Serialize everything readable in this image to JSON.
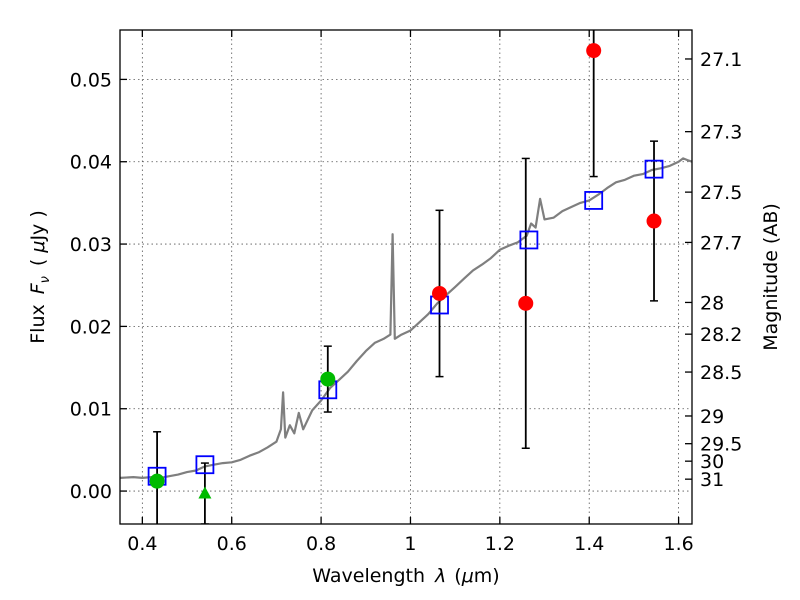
{
  "chart_data": {
    "type": "scatter",
    "xlabel_prefix": "Wavelength",
    "xlabel_symbol": "λ",
    "xlabel_unit_open": "(",
    "xlabel_unit_mu": "μ",
    "xlabel_unit_rest": "m)",
    "ylabel_prefix": "Flux",
    "ylabel_symbol": "F",
    "ylabel_symbol_sub": "ν",
    "ylabel_unit_open": "(",
    "ylabel_unit_mu": "μ",
    "ylabel_unit_rest": "Jy )",
    "y2label": "Magnitude (AB)",
    "xlim": [
      0.35,
      1.63
    ],
    "ylim": [
      -0.004,
      0.056
    ],
    "grid": true,
    "x_ticks": [
      {
        "value": 0.4,
        "label": "0.4"
      },
      {
        "value": 0.6,
        "label": "0.6"
      },
      {
        "value": 0.8,
        "label": "0.8"
      },
      {
        "value": 1.0,
        "label": "1"
      },
      {
        "value": 1.2,
        "label": "1.2"
      },
      {
        "value": 1.4,
        "label": "1.4"
      },
      {
        "value": 1.6,
        "label": "1.6"
      }
    ],
    "y_ticks": [
      {
        "value": 0.0,
        "label": "0.00"
      },
      {
        "value": 0.01,
        "label": "0.01"
      },
      {
        "value": 0.02,
        "label": "0.02"
      },
      {
        "value": 0.03,
        "label": "0.03"
      },
      {
        "value": 0.04,
        "label": "0.04"
      },
      {
        "value": 0.05,
        "label": "0.05"
      }
    ],
    "mag_ticks": [
      {
        "mag": 27.1,
        "label": "27.1"
      },
      {
        "mag": 27.3,
        "label": "27.3"
      },
      {
        "mag": 27.5,
        "label": "27.5"
      },
      {
        "mag": 27.7,
        "label": "27.7"
      },
      {
        "mag": 28.0,
        "label": "28"
      },
      {
        "mag": 28.2,
        "label": "28.2"
      },
      {
        "mag": 28.5,
        "label": "28.5"
      },
      {
        "mag": 29.0,
        "label": "29"
      },
      {
        "mag": 29.5,
        "label": "29.5"
      },
      {
        "mag": 30.0,
        "label": "30"
      },
      {
        "mag": 31.0,
        "label": "31"
      }
    ],
    "sed_color": "#7f7f7f",
    "sed_model": [
      [
        0.35,
        0.0016
      ],
      [
        0.38,
        0.0017
      ],
      [
        0.4,
        0.0016
      ],
      [
        0.42,
        0.0017
      ],
      [
        0.44,
        0.0016
      ],
      [
        0.46,
        0.0018
      ],
      [
        0.48,
        0.002
      ],
      [
        0.5,
        0.0023
      ],
      [
        0.52,
        0.0025
      ],
      [
        0.54,
        0.003
      ],
      [
        0.56,
        0.0032
      ],
      [
        0.58,
        0.0034
      ],
      [
        0.6,
        0.0035
      ],
      [
        0.62,
        0.0038
      ],
      [
        0.64,
        0.0043
      ],
      [
        0.66,
        0.0047
      ],
      [
        0.68,
        0.0053
      ],
      [
        0.7,
        0.006
      ],
      [
        0.71,
        0.0075
      ],
      [
        0.715,
        0.012
      ],
      [
        0.72,
        0.0065
      ],
      [
        0.73,
        0.008
      ],
      [
        0.74,
        0.007
      ],
      [
        0.75,
        0.0095
      ],
      [
        0.76,
        0.0075
      ],
      [
        0.78,
        0.0098
      ],
      [
        0.8,
        0.011
      ],
      [
        0.82,
        0.0125
      ],
      [
        0.84,
        0.0135
      ],
      [
        0.86,
        0.0145
      ],
      [
        0.88,
        0.0158
      ],
      [
        0.9,
        0.017
      ],
      [
        0.92,
        0.018
      ],
      [
        0.94,
        0.0185
      ],
      [
        0.955,
        0.019
      ],
      [
        0.96,
        0.0312
      ],
      [
        0.965,
        0.0185
      ],
      [
        0.98,
        0.019
      ],
      [
        1.0,
        0.0195
      ],
      [
        1.02,
        0.0205
      ],
      [
        1.04,
        0.0215
      ],
      [
        1.06,
        0.0228
      ],
      [
        1.08,
        0.0238
      ],
      [
        1.1,
        0.0248
      ],
      [
        1.12,
        0.0258
      ],
      [
        1.14,
        0.0268
      ],
      [
        1.16,
        0.0275
      ],
      [
        1.18,
        0.0283
      ],
      [
        1.2,
        0.0293
      ],
      [
        1.22,
        0.0298
      ],
      [
        1.24,
        0.0302
      ],
      [
        1.26,
        0.031
      ],
      [
        1.27,
        0.0325
      ],
      [
        1.28,
        0.032
      ],
      [
        1.29,
        0.0355
      ],
      [
        1.3,
        0.033
      ],
      [
        1.32,
        0.0332
      ],
      [
        1.34,
        0.034
      ],
      [
        1.36,
        0.0345
      ],
      [
        1.38,
        0.035
      ],
      [
        1.4,
        0.0353
      ],
      [
        1.42,
        0.036
      ],
      [
        1.44,
        0.0368
      ],
      [
        1.46,
        0.0375
      ],
      [
        1.48,
        0.0378
      ],
      [
        1.5,
        0.0383
      ],
      [
        1.52,
        0.0385
      ],
      [
        1.54,
        0.039
      ],
      [
        1.56,
        0.0392
      ],
      [
        1.58,
        0.0395
      ],
      [
        1.6,
        0.04
      ],
      [
        1.61,
        0.0404
      ],
      [
        1.62,
        0.0402
      ],
      [
        1.63,
        0.04
      ]
    ],
    "model_points": {
      "marker": "open-square",
      "color": "#0000ff",
      "points": [
        [
          0.433,
          0.0018
        ],
        [
          0.54,
          0.0032
        ],
        [
          0.815,
          0.0123
        ],
        [
          1.065,
          0.0226
        ],
        [
          1.265,
          0.0305
        ],
        [
          1.41,
          0.0353
        ],
        [
          1.545,
          0.0391
        ]
      ]
    },
    "detections": {
      "marker": "circle",
      "color": "#00bb00",
      "points": [
        {
          "x": 0.433,
          "y": 0.0012,
          "err": 0.006
        },
        {
          "x": 0.815,
          "y": 0.0136,
          "err": 0.004
        }
      ]
    },
    "upper_limit": {
      "marker": "triangle",
      "color": "#00bb00",
      "points": [
        {
          "x": 0.54,
          "y": -0.0003,
          "err": 0.0037
        }
      ]
    },
    "low_sn_points": {
      "marker": "circle",
      "color": "#ff0000",
      "points": [
        {
          "x": 1.065,
          "y": 0.024,
          "err": 0.0101
        },
        {
          "x": 1.258,
          "y": 0.0228,
          "err": 0.0176
        },
        {
          "x": 1.41,
          "y": 0.0535,
          "err": 0.0153
        },
        {
          "x": 1.545,
          "y": 0.0328,
          "err": 0.0097
        }
      ]
    }
  }
}
